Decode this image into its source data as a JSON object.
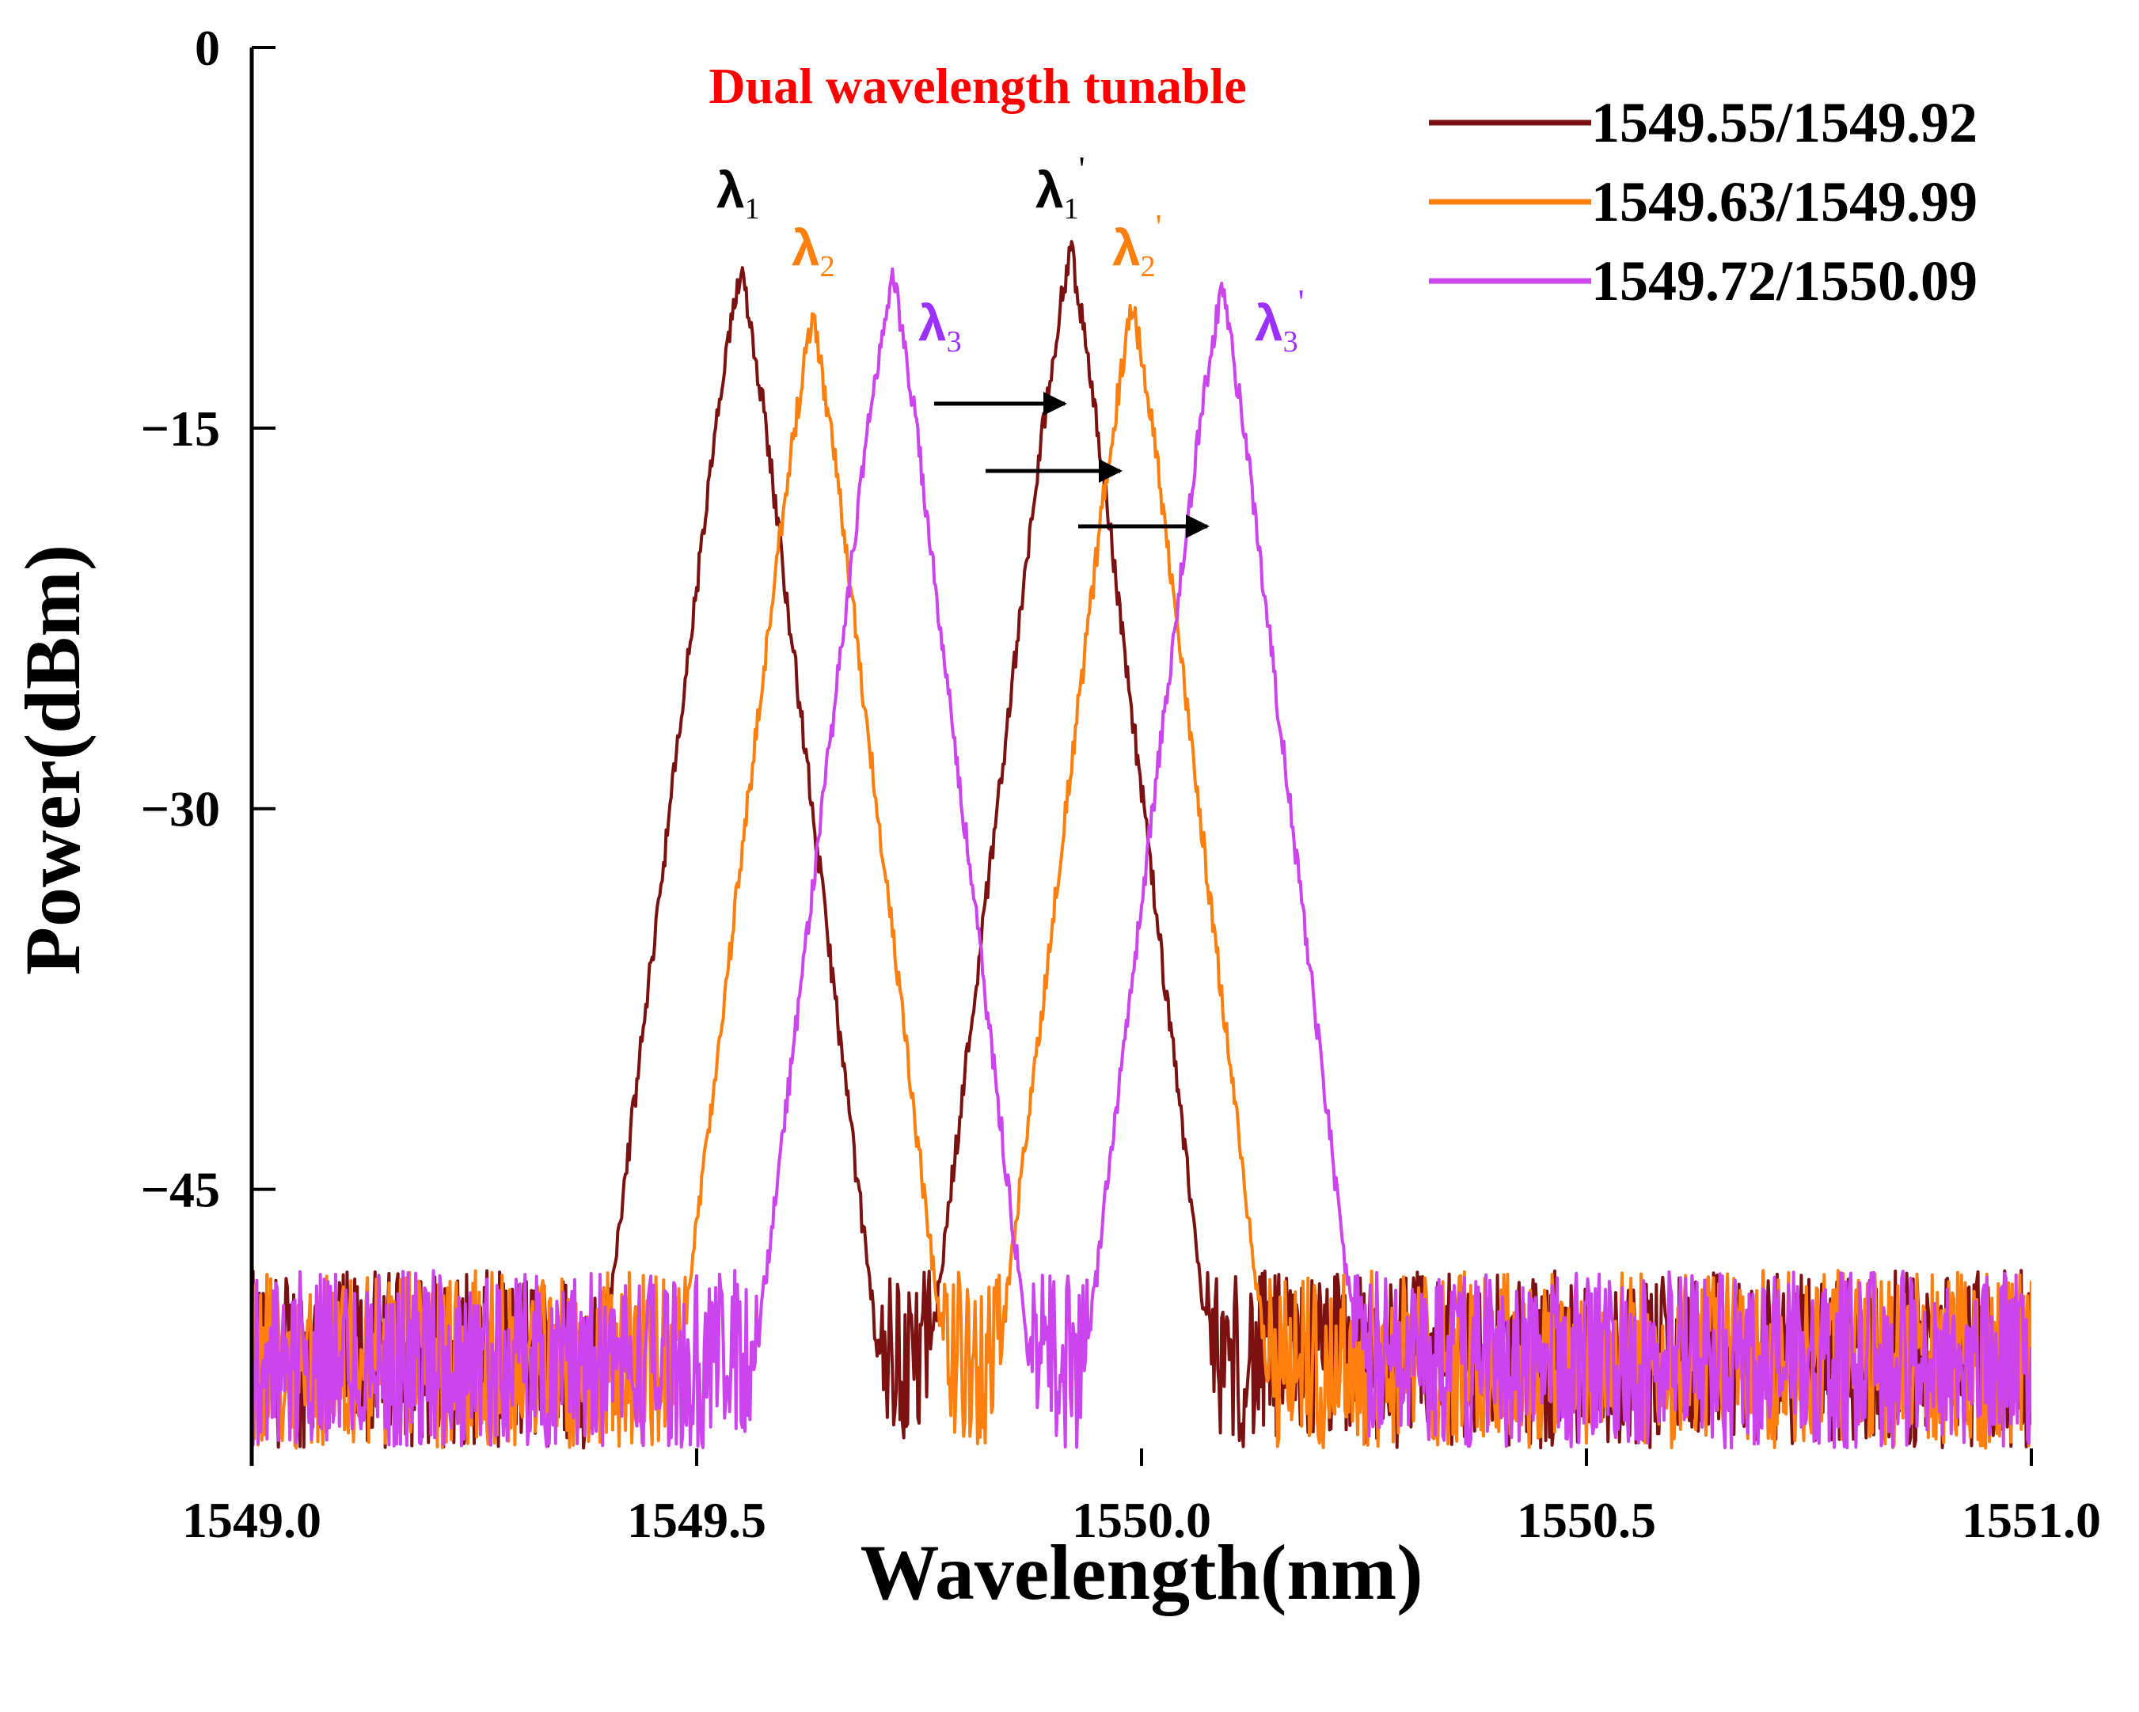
{
  "chart_data": {
    "type": "line",
    "title": "Dual wavelength tunable",
    "title_color": "#ff0000",
    "xlabel": "Wavelength(nm)",
    "ylabel": "Power(dBm)",
    "xlim": [
      1549.0,
      1551.0
    ],
    "ylim": [
      -55.9,
      0
    ],
    "x_ticks": [
      1549.0,
      1549.5,
      1550.0,
      1550.5,
      1551.0
    ],
    "x_tick_labels": [
      "1549.0",
      "1549.5",
      "1550.0",
      "1550.5",
      "1551.0"
    ],
    "y_ticks": [
      0,
      -15,
      -30,
      -45
    ],
    "y_tick_labels": [
      "0",
      "−15",
      "−30",
      "−45"
    ],
    "grid": false,
    "legend_position": "top-right",
    "noise_floor_dbm": -51,
    "series": [
      {
        "name": "1549.55/1549.92",
        "color": "#7b1111",
        "peaks": [
          {
            "x": 1549.55,
            "y": -8.5
          },
          {
            "x": 1549.92,
            "y": -7.8
          }
        ]
      },
      {
        "name": "1549.63/1549.99",
        "color": "#ff7f0e",
        "peaks": [
          {
            "x": 1549.63,
            "y": -10.5
          },
          {
            "x": 1549.99,
            "y": -10.0
          }
        ]
      },
      {
        "name": "1549.72/1550.09",
        "color": "#cc44ee",
        "peaks": [
          {
            "x": 1549.72,
            "y": -8.8
          },
          {
            "x": 1550.09,
            "y": -9.3
          }
        ]
      }
    ],
    "peak_labels": [
      {
        "symbol": "λ",
        "sub": "1",
        "prime": "",
        "color": "#000000"
      },
      {
        "symbol": "λ",
        "sub": "2",
        "prime": "",
        "color": "#ff7f0e"
      },
      {
        "symbol": "λ",
        "sub": "3",
        "prime": "",
        "color": "#9b30ff"
      },
      {
        "symbol": "λ",
        "sub": "1",
        "prime": "'",
        "color": "#000000"
      },
      {
        "symbol": "λ",
        "sub": "2",
        "prime": "'",
        "color": "#ff7f0e"
      },
      {
        "symbol": "λ",
        "sub": "3",
        "prime": "'",
        "color": "#9b30ff"
      }
    ],
    "shift_arrows": [
      {
        "from": "λ1",
        "to": "λ1'"
      },
      {
        "from": "λ2",
        "to": "λ2'"
      },
      {
        "from": "λ3",
        "to": "λ3'"
      }
    ]
  }
}
